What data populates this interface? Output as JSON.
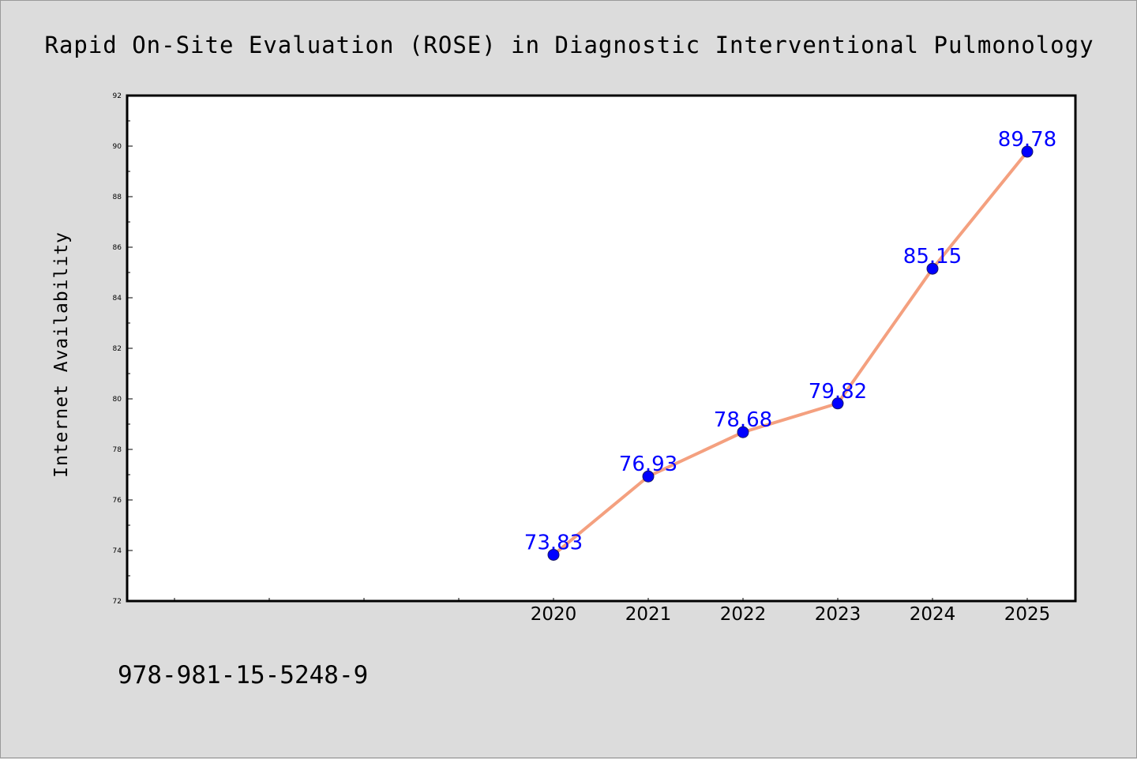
{
  "chart_data": {
    "type": "line",
    "title": "Rapid On-Site Evaluation (ROSE) in Diagnostic Interventional Pulmonology",
    "xlabel": "",
    "ylabel": "Internet Availability",
    "x": [
      "2020",
      "2021",
      "2022",
      "2023",
      "2024",
      "2025"
    ],
    "series": [
      {
        "values": [
          73.83,
          76.93,
          78.68,
          79.82,
          85.15,
          89.78
        ],
        "data_labels": [
          "73.83",
          "76.93",
          "78.68",
          "79.82",
          "85.15",
          "89.78"
        ],
        "line_color": "#f4a07f",
        "marker_color": "#0000ff"
      }
    ],
    "ylim": [
      72,
      92
    ],
    "yticks": [
      "72",
      "74",
      "76",
      "78",
      "80",
      "82",
      "84",
      "86",
      "88",
      "90",
      "92"
    ],
    "x_slots": 10,
    "grid": false,
    "legend": "none"
  },
  "footer": {
    "isbn": "978-981-15-5248-9"
  },
  "colors": {
    "background": "#dcdcdc",
    "plot_background": "#ffffff",
    "line": "#f4a07f",
    "marker": "#0000ff",
    "data_label": "#0000ff"
  }
}
